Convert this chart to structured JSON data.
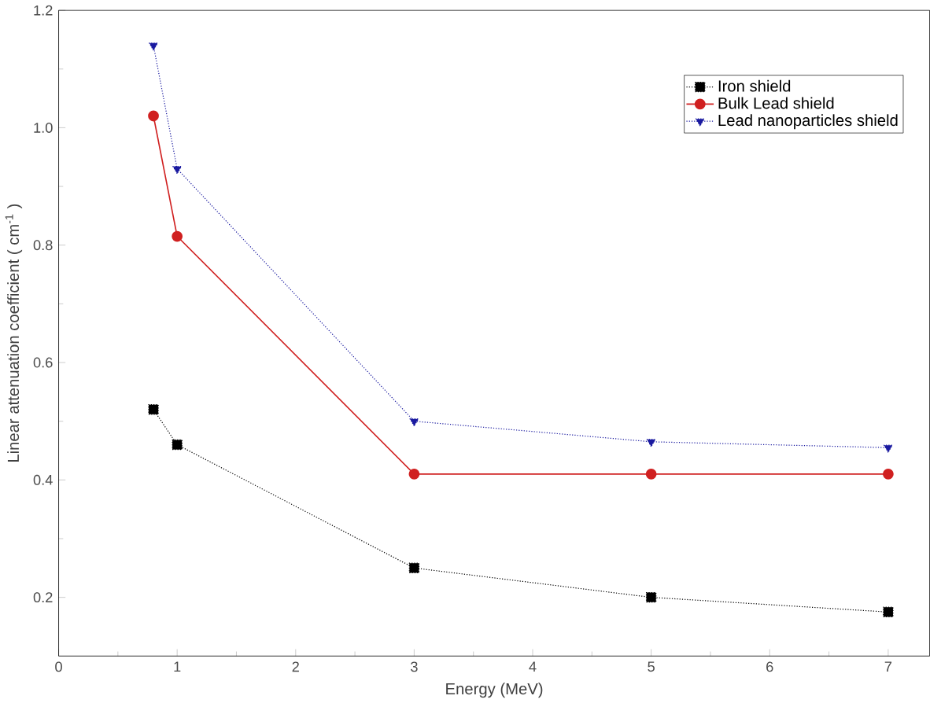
{
  "chart_data": {
    "type": "line",
    "xlabel": "Energy (MeV)",
    "ylabel": "Linear attenuation coefficient ( cm$^{-1}$ )",
    "x": [
      0.8,
      1,
      3,
      5,
      7
    ],
    "series": [
      {
        "name": "Iron shield",
        "color": "#000000",
        "values": [
          0.52,
          0.46,
          0.25,
          0.2,
          0.175
        ],
        "marker": "square",
        "line_style": "dotted"
      },
      {
        "name": "Bulk Lead shield",
        "color": "#d02020",
        "values": [
          1.02,
          0.815,
          0.41,
          0.41,
          0.41
        ],
        "marker": "circle",
        "line_style": "solid"
      },
      {
        "name": "Lead nanoparticles shield",
        "color": "#1a1aa0",
        "values": [
          1.14,
          0.93,
          0.5,
          0.465,
          0.455
        ],
        "marker": "triangle",
        "line_style": "dotted"
      }
    ],
    "xlim": [
      0,
      7.35
    ],
    "ylim": [
      0.1,
      1.2
    ],
    "xticks": [
      0,
      1,
      2,
      3,
      4,
      5,
      6,
      7
    ],
    "yticks": [
      0.2,
      0.4,
      0.6,
      0.8,
      {
        "value": 1,
        "label": "1.0"
      },
      1.2
    ],
    "legend": "top right",
    "grid": false
  }
}
